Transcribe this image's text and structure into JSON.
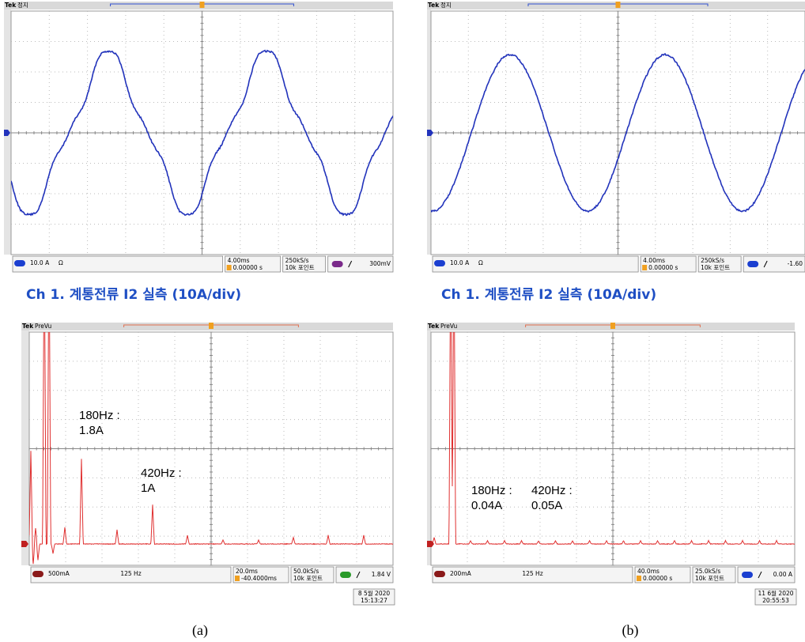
{
  "panels": [
    {
      "label": "(a)",
      "caption": "Ch 1. 계통전류 I2 실측  (10A/div)",
      "waveform": {
        "brand": "Tek",
        "mode": "정지",
        "channel": "10.0 A",
        "unit": "Ω",
        "timebase": "4.00ms",
        "trigger_position": "0.00000 s",
        "sample_rate": "250kS/s",
        "record": "10k 포인트",
        "trigger_level": "300mV"
      },
      "spectrum": {
        "brand": "Tek",
        "mode": "PreVu",
        "channel": "500mA",
        "center": "125 Hz",
        "timebase": "20.0ms",
        "trigger_position": "-40.4000ms",
        "sample_rate": "50.0kS/s",
        "record": "10k 포인트",
        "trigger_level": "1.84 V",
        "date": "8 5월 2020",
        "time": "15:13:27",
        "annotations": [
          {
            "lines": [
              "180Hz :",
              "1.8A"
            ]
          },
          {
            "lines": [
              "420Hz :",
              "1A"
            ]
          }
        ]
      }
    },
    {
      "label": "(b)",
      "caption": "Ch 1. 계통전류 I2 실측  (10A/div)",
      "waveform": {
        "brand": "Tek",
        "mode": "정지",
        "channel": "10.0 A",
        "unit": "Ω",
        "timebase": "4.00ms",
        "trigger_position": "0.00000 s",
        "sample_rate": "250kS/s",
        "record": "10k 포인트",
        "trigger_level": "-1.60"
      },
      "spectrum": {
        "brand": "Tek",
        "mode": "PreVu",
        "channel": "200mA",
        "center": "125 Hz",
        "timebase": "40.0ms",
        "trigger_position": "0.00000 s",
        "sample_rate": "25.0kS/s",
        "record": "10k 포인트",
        "trigger_level": "0.00 A",
        "date": "11 6월 2020",
        "time": "20:55:53",
        "annotations": [
          {
            "lines": [
              "180Hz :",
              "0.04A"
            ]
          },
          {
            "lines": [
              "420Hz :",
              "0.05A"
            ]
          }
        ]
      }
    }
  ]
}
